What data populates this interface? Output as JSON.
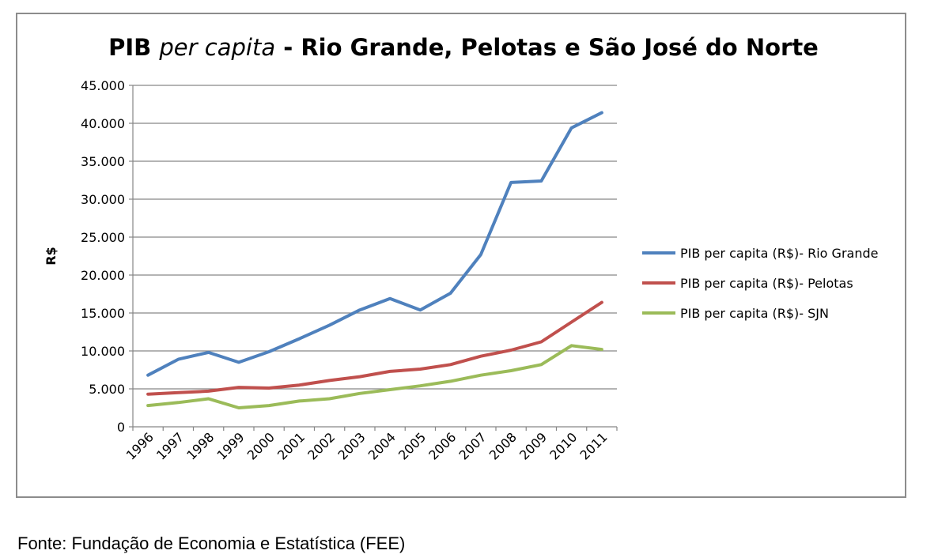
{
  "chart_data": {
    "type": "line",
    "title_main": "PIB ",
    "title_italic": "per capita",
    "title_rest": " - Rio Grande, Pelotas e São José do Norte",
    "ylabel": "R$",
    "xlabel": "",
    "ylim": [
      0,
      45000
    ],
    "yticks": [
      {
        "value": 0,
        "label": "0"
      },
      {
        "value": 5000,
        "label": "5.000"
      },
      {
        "value": 10000,
        "label": "10.000"
      },
      {
        "value": 15000,
        "label": "15.000"
      },
      {
        "value": 20000,
        "label": "20.000"
      },
      {
        "value": 25000,
        "label": "25.000"
      },
      {
        "value": 30000,
        "label": "30.000"
      },
      {
        "value": 35000,
        "label": "35.000"
      },
      {
        "value": 40000,
        "label": "40.000"
      },
      {
        "value": 45000,
        "label": "45.000"
      }
    ],
    "categories": [
      "1996",
      "1997",
      "1998",
      "1999",
      "2000",
      "2001",
      "2002",
      "2003",
      "2004",
      "2005",
      "2006",
      "2007",
      "2008",
      "2009",
      "2010",
      "2011"
    ],
    "grid": true,
    "legend_position": "right",
    "series": [
      {
        "name": "PIB per capita (R$)- Rio Grande",
        "color": "#4f81bd",
        "values": [
          6800,
          8900,
          9800,
          8500,
          9900,
          11600,
          13400,
          15400,
          16900,
          15400,
          17600,
          22700,
          32200,
          32400,
          39400,
          41400
        ]
      },
      {
        "name": "PIB per capita (R$)- Pelotas",
        "color": "#c0504d",
        "values": [
          4300,
          4500,
          4700,
          5200,
          5100,
          5500,
          6100,
          6600,
          7300,
          7600,
          8200,
          9300,
          10100,
          11200,
          13800,
          16400
        ]
      },
      {
        "name": "PIB per capita (R$)- SJN",
        "color": "#9bbb59",
        "values": [
          2800,
          3200,
          3700,
          2500,
          2800,
          3400,
          3700,
          4400,
          4900,
          5400,
          6000,
          6800,
          7400,
          8200,
          10700,
          10200
        ]
      }
    ]
  },
  "source_note": "Fonte: Fundação de Economia e Estatística (FEE)"
}
